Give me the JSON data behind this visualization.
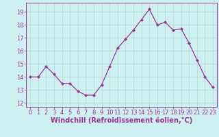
{
  "x": [
    0,
    1,
    2,
    3,
    4,
    5,
    6,
    7,
    8,
    9,
    10,
    11,
    12,
    13,
    14,
    15,
    16,
    17,
    18,
    19,
    20,
    21,
    22,
    23
  ],
  "y": [
    14.0,
    14.0,
    14.8,
    14.2,
    13.5,
    13.5,
    12.9,
    12.6,
    12.6,
    13.4,
    14.8,
    16.2,
    16.9,
    17.6,
    18.4,
    19.2,
    18.0,
    18.2,
    17.6,
    17.7,
    16.6,
    15.3,
    14.0,
    13.2
  ],
  "line_color": "#993399",
  "marker": "D",
  "marker_size": 2.0,
  "bg_color": "#cff0f0",
  "grid_color": "#aaddcc",
  "xlabel": "Windchill (Refroidissement éolien,°C)",
  "xlim": [
    -0.5,
    23.5
  ],
  "ylim": [
    11.7,
    19.7
  ],
  "yticks": [
    12,
    13,
    14,
    15,
    16,
    17,
    18,
    19
  ],
  "xticks": [
    0,
    1,
    2,
    3,
    4,
    5,
    6,
    7,
    8,
    9,
    10,
    11,
    12,
    13,
    14,
    15,
    16,
    17,
    18,
    19,
    20,
    21,
    22,
    23
  ],
  "tick_color": "#993399",
  "label_color": "#993399",
  "axis_color": "#993399",
  "tick_fontsize": 6.0,
  "xlabel_fontsize": 7.0,
  "linewidth": 0.9
}
